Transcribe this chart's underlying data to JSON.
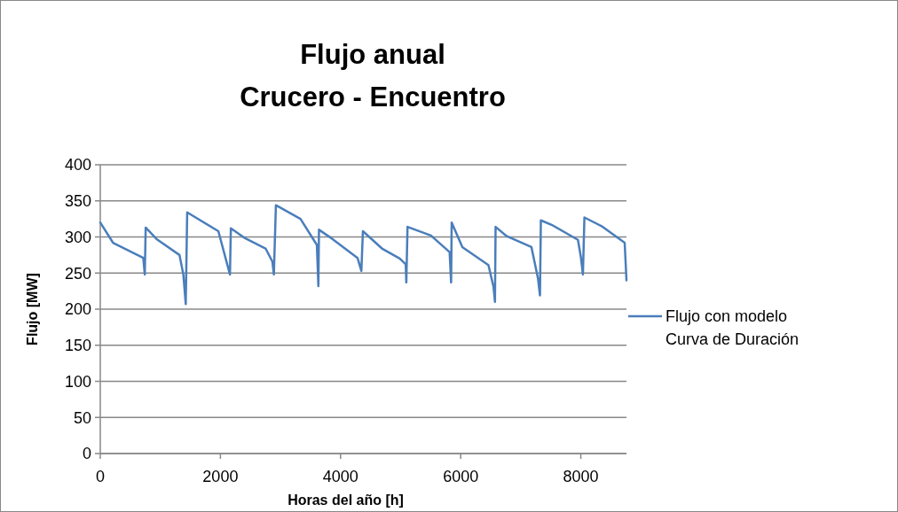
{
  "chart_data": {
    "type": "line",
    "title": "Flujo anual\nCrucero - Encuentro",
    "xlabel": "Horas del año [h]",
    "ylabel": "Flujo [MW]",
    "xlim": [
      0,
      8760
    ],
    "xticks": [
      0,
      2000,
      4000,
      6000,
      8000
    ],
    "ylim": [
      0,
      400
    ],
    "yticks": [
      0,
      50,
      100,
      150,
      200,
      250,
      300,
      350,
      400
    ],
    "grid": "y",
    "legend": "right",
    "marker": "none",
    "line_style": "solid",
    "series": [
      {
        "name": "Flujo con modelo\nCurva de Duración",
        "color": "#4a7ebb",
        "x": [
          0,
          212,
          716,
          741,
          756,
          939,
          1319,
          1383,
          1423,
          1447,
          1966,
          2159,
          2174,
          2396,
          2752,
          2865,
          2890,
          2924,
          3333,
          3606,
          3631,
          3641,
          3853,
          4283,
          4347,
          4372,
          4690,
          4986,
          5085,
          5095,
          5115,
          5505,
          5816,
          5841,
          5850,
          6028,
          6462,
          6546,
          6571,
          6581,
          6768,
          7178,
          7286,
          7320,
          7335,
          7532,
          7952,
          8001,
          8035,
          8060,
          8346,
          8730,
          8760
        ],
        "values": [
          320,
          292,
          271,
          248,
          313,
          297,
          275,
          248,
          207,
          334,
          308,
          248,
          312,
          299,
          284,
          266,
          248,
          344,
          325,
          289,
          232,
          310,
          298,
          271,
          253,
          308,
          284,
          270,
          262,
          237,
          314,
          302,
          279,
          237,
          320,
          286,
          261,
          231,
          210,
          314,
          301,
          286,
          243,
          219,
          323,
          316,
          296,
          272,
          248,
          327,
          315,
          292,
          240
        ]
      }
    ]
  }
}
